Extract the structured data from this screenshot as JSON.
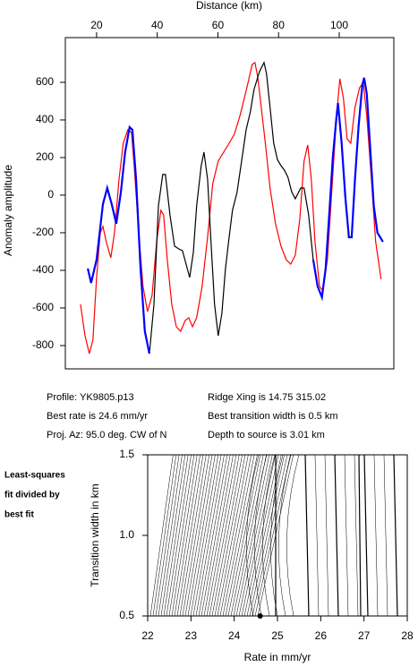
{
  "chart_data": [
    {
      "type": "line",
      "x_label": "Distance (km)",
      "y_label": "Anomaly amplitude",
      "xlim": [
        9.7,
        118
      ],
      "xticks": [
        20,
        40,
        60,
        80,
        100
      ],
      "ylim": [
        -924,
        838
      ],
      "yticks": [
        -800,
        -600,
        -400,
        -200,
        0,
        200,
        400,
        600
      ],
      "series": [
        {
          "color": "#ff0000",
          "x": [
            14.7,
            16.2,
            17.6,
            18.8,
            20.0,
            21.2,
            22.1,
            23.2,
            24.7,
            25.9,
            27.4,
            28.8,
            30.3,
            31.5,
            32.4,
            33.9,
            35.3,
            36.8,
            38.3,
            39.8,
            41.2,
            42.1,
            43.3,
            44.8,
            46.3,
            47.7,
            49.2,
            50.4,
            51.6,
            53.0,
            54.8,
            56.6,
            58.3,
            60.1,
            61.9,
            63.7,
            65.4,
            67.2,
            68.7,
            70.1,
            71.3,
            72.2,
            73.1,
            74.3,
            75.8,
            77.2,
            79.0,
            80.8,
            82.5,
            84.0,
            85.5,
            87.0,
            88.4,
            89.6,
            90.8,
            92.0,
            93.5,
            94.6,
            96.1,
            97.6,
            99.1,
            100.2,
            101.4,
            102.6,
            103.8,
            105.2,
            106.7,
            107.9,
            109.1,
            110.6,
            112.0,
            113.8
          ],
          "values": [
            -581,
            -748,
            -843,
            -771,
            -438,
            -200,
            -167,
            -248,
            -333,
            -200,
            86,
            276,
            348,
            333,
            157,
            -200,
            -486,
            -619,
            -533,
            -248,
            -81,
            -105,
            -343,
            -581,
            -700,
            -724,
            -667,
            -652,
            -700,
            -652,
            -486,
            -224,
            62,
            181,
            229,
            276,
            324,
            419,
            514,
            610,
            695,
            705,
            633,
            467,
            252,
            38,
            -152,
            -271,
            -343,
            -367,
            -319,
            -129,
            181,
            267,
            86,
            -248,
            -486,
            -510,
            -343,
            38,
            419,
            619,
            514,
            300,
            276,
            467,
            571,
            600,
            419,
            86,
            -248,
            -448
          ]
        },
        {
          "color": "#000000",
          "x": [
            17.1,
            18.2,
            20.0,
            22.1,
            23.5,
            25.0,
            26.5,
            28.0,
            29.4,
            30.9,
            31.8,
            33.0,
            34.5,
            35.9,
            37.4,
            38.9,
            40.4,
            41.8,
            42.7,
            44.2,
            45.7,
            47.1,
            48.3,
            49.5,
            50.7,
            51.9,
            53.0,
            54.5,
            55.4,
            56.6,
            57.8,
            58.9,
            60.1,
            61.3,
            62.5,
            63.7,
            64.8,
            66.3,
            67.8,
            69.3,
            70.7,
            71.9,
            73.7,
            75.2,
            76.0,
            77.2,
            78.4,
            79.6,
            80.8,
            81.9,
            83.1,
            84.3,
            85.5,
            87.3,
            88.4,
            89.9,
            91.4,
            92.9,
            94.3,
            95.5,
            96.7,
            97.9,
            99.1,
            99.6,
            100.8,
            102.0,
            103.2,
            104.1,
            105.2,
            106.4,
            107.6,
            108.2,
            109.1,
            110.3,
            111.4,
            112.6,
            114.4
          ],
          "values": [
            -390,
            -467,
            -343,
            -48,
            38,
            -48,
            -152,
            14,
            229,
            362,
            348,
            86,
            -390,
            -724,
            -843,
            -581,
            -57,
            110,
            110,
            -105,
            -271,
            -286,
            -295,
            -367,
            -438,
            -305,
            -57,
            157,
            229,
            86,
            -271,
            -581,
            -748,
            -629,
            -390,
            -224,
            -81,
            14,
            181,
            348,
            443,
            562,
            657,
            705,
            648,
            467,
            276,
            190,
            157,
            133,
            95,
            19,
            -19,
            38,
            38,
            -105,
            -343,
            -486,
            -543,
            -390,
            -105,
            205,
            419,
            490,
            276,
            -10,
            -224,
            -224,
            86,
            371,
            586,
            624,
            538,
            229,
            -57,
            -200,
            -248
          ]
        },
        {
          "color": "#0000ff",
          "x": [
            17.1,
            18.2,
            20.0,
            22.1,
            23.5,
            25.0,
            26.5,
            28.0,
            29.4,
            30.9,
            31.8,
            33.0,
            34.5,
            35.9,
            37.4,
            60.1,
            91.4,
            92.9,
            94.3,
            95.5,
            96.7,
            97.9,
            99.1,
            99.6,
            100.8,
            102.0,
            103.2,
            104.1,
            105.2,
            106.4,
            107.6,
            108.2,
            109.1,
            110.3,
            111.4,
            112.6,
            114.4
          ],
          "values": [
            -390,
            -467,
            -343,
            -48,
            38,
            -48,
            -152,
            14,
            229,
            362,
            348,
            86,
            -390,
            -724,
            -843,
            null,
            -343,
            -486,
            -543,
            -390,
            -105,
            205,
            419,
            490,
            276,
            -10,
            -224,
            -224,
            86,
            371,
            586,
            624,
            538,
            229,
            -57,
            -200,
            -248
          ]
        }
      ]
    },
    {
      "type": "contour",
      "x_label": "Rate in mm/yr",
      "y_label": "Transition width in km",
      "xlim": [
        22,
        28
      ],
      "xticks": [
        22,
        23,
        24,
        25,
        26,
        27,
        28
      ],
      "ylim": [
        0.5,
        1.5
      ],
      "yticks": [
        {
          "value": 0.5,
          "label": "0.5"
        },
        {
          "value": 1,
          "label": "1.0"
        },
        {
          "value": 1.5,
          "label": "1.5"
        }
      ],
      "best_point": {
        "x": 24.6,
        "y": 0.5
      }
    }
  ],
  "info": {
    "left": [
      "Profile: YK9805.p13",
      "Best rate is 24.6 mm/yr",
      "Proj. Az: 95.0 deg. CW of N"
    ],
    "right": [
      "Ridge Xing is 14.75 315.02",
      "Best transition width is 0.5 km",
      "Depth to source is   3.01 km"
    ]
  },
  "side_label": [
    "Least-squares",
    "fit divided by",
    "best fit"
  ]
}
